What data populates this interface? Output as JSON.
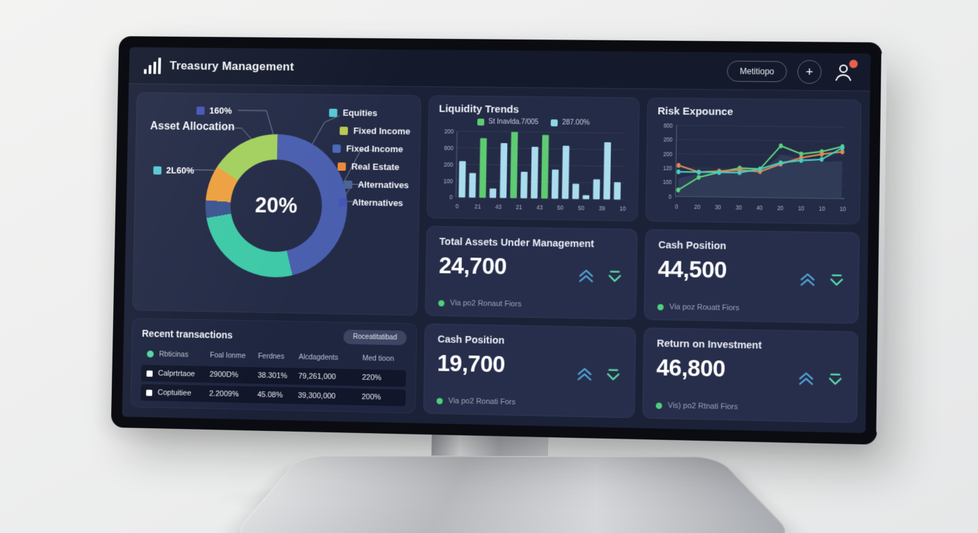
{
  "app": {
    "title": "Treasury Management"
  },
  "topbar": {
    "menu_button_label": "Metitiopo",
    "add_button_label": "+"
  },
  "asset_allocation": {
    "title": "Asset Allocation",
    "center_value": "20%",
    "callouts": [
      {
        "label": "160%",
        "color": "#4656b8"
      },
      {
        "label": "2L60%",
        "color": "#57c7d4"
      }
    ],
    "segments": [
      {
        "label": "Equities",
        "value": 46,
        "color": "#4a5fae"
      },
      {
        "label": "Fixed Income",
        "value": 26,
        "color": "#3ec9a7"
      },
      {
        "label": "Alternatives",
        "value": 4,
        "color": "#3c5590"
      },
      {
        "label": "Real Estate",
        "value": 8,
        "color": "#eda13f"
      },
      {
        "label": "Fixed Income",
        "value": 16,
        "color": "#a3d05f"
      }
    ],
    "legend": [
      {
        "label": "Equities",
        "color": "#57c7d4",
        "indent": 0
      },
      {
        "label": "Fixed Income",
        "color": "#b9c94f",
        "indent": 16
      },
      {
        "label": "Fixed Income",
        "color": "#4a69b5",
        "indent": 6
      },
      {
        "label": "Real Estate",
        "color": "#ed8a3a",
        "indent": 14
      },
      {
        "label": "Alternatives",
        "color": "#4d6496",
        "indent": 24
      },
      {
        "label": "Alternatives",
        "color": "#4656b8",
        "indent": 16
      }
    ]
  },
  "liquidity": {
    "title": "Liquidity Trends",
    "legend": [
      {
        "label": "St Inavlda.7/005",
        "color": "#5ecb72"
      },
      {
        "label": "287.00%",
        "color": "#8fd6e6"
      }
    ],
    "y_ticks": [
      "200",
      "800",
      "200",
      "100",
      "0"
    ],
    "x_ticks": [
      "0",
      "21",
      "43",
      "21",
      "43",
      "50",
      "50",
      "39",
      "10"
    ],
    "bar_values": [
      110,
      74,
      180,
      28,
      166,
      200,
      80,
      156,
      192,
      88,
      160,
      46,
      12,
      60,
      172,
      52
    ],
    "green_indices": [
      2,
      5,
      8
    ],
    "bar_colors": {
      "light": "#a9dcee",
      "green": "#5ecb72"
    },
    "y_max": 200
  },
  "risk": {
    "title": "Risk Expounce",
    "y_ticks": [
      "800",
      "200",
      "200",
      "120",
      "100",
      "0"
    ],
    "x_ticks": [
      "0",
      "20",
      "30",
      "30",
      "40",
      "20",
      "10",
      "10",
      "10"
    ],
    "series": [
      {
        "name": "green-line",
        "color": "#5bd17f",
        "values": [
          10,
          30,
          38,
          45,
          44,
          80,
          68,
          72,
          80
        ]
      },
      {
        "name": "orange-line",
        "color": "#df8a52",
        "values": [
          48,
          38,
          40,
          42,
          40,
          52,
          62,
          68,
          72
        ]
      },
      {
        "name": "teal-line",
        "color": "#45cfc0",
        "values": [
          38,
          38,
          38,
          38,
          44,
          54,
          58,
          60,
          78
        ]
      }
    ],
    "area": {
      "color": "#323e5c",
      "values": [
        28,
        36,
        36,
        40,
        40,
        66,
        62,
        56,
        58
      ]
    }
  },
  "cards": [
    {
      "title": "Total Assets Under Management",
      "value": "24,700",
      "caption": "Via po2 Ronaut Fiors"
    },
    {
      "title": "Cash Position",
      "value": "44,500",
      "caption": "Via poz Rouatt Fiors"
    },
    {
      "title": "Cash Position",
      "value": "19,700",
      "caption": "Via po2 Ronati Fors"
    },
    {
      "title": "Return on Investment",
      "value": "46,800",
      "caption": "Vis) po2 Rtnati Fiors"
    }
  ],
  "card_icon_colors": {
    "up": "#4e9fce",
    "down": "#57d6a3"
  },
  "transactions": {
    "title": "Recent transactions",
    "button_label": "Roceatitatibad",
    "columns": [
      "Rbticinas",
      "Foal Ionme",
      "Ferdnes",
      "Alcdagdents",
      "Med tioon"
    ],
    "rows": [
      [
        "Calprtrtaoe",
        "2900D%",
        "38.301%",
        "79,261,000",
        "220%"
      ],
      [
        "Coptuitiee",
        "2.2009%",
        "45.08%",
        "39,300,000",
        "200%"
      ]
    ]
  },
  "chart_data": [
    {
      "type": "pie",
      "title": "Asset Allocation",
      "center_label": "20%",
      "labels": [
        "Equities",
        "Fixed Income",
        "Alternatives",
        "Real Estate",
        "Fixed Income"
      ],
      "values": [
        46,
        26,
        4,
        8,
        16
      ],
      "legend_position": "right"
    },
    {
      "type": "bar",
      "title": "Liquidity Trends",
      "x": [
        1,
        2,
        3,
        4,
        5,
        6,
        7,
        8,
        9,
        10,
        11,
        12,
        13,
        14,
        15,
        16
      ],
      "values": [
        110,
        74,
        180,
        28,
        166,
        200,
        80,
        156,
        192,
        88,
        160,
        46,
        12,
        60,
        172,
        52
      ],
      "ylim": [
        0,
        200
      ],
      "grid": true,
      "legend": [
        "St Inavlda.7/005",
        "287.00%"
      ]
    },
    {
      "type": "line",
      "title": "Risk Expounce",
      "x": [
        0,
        1,
        2,
        3,
        4,
        5,
        6,
        7,
        8
      ],
      "series": [
        {
          "name": "green",
          "values": [
            10,
            30,
            38,
            45,
            44,
            80,
            68,
            72,
            80
          ]
        },
        {
          "name": "orange",
          "values": [
            48,
            38,
            40,
            42,
            40,
            52,
            62,
            68,
            72
          ]
        },
        {
          "name": "teal",
          "values": [
            38,
            38,
            38,
            38,
            44,
            54,
            58,
            60,
            78
          ]
        }
      ],
      "ylim": [
        0,
        110
      ],
      "grid": true
    }
  ]
}
